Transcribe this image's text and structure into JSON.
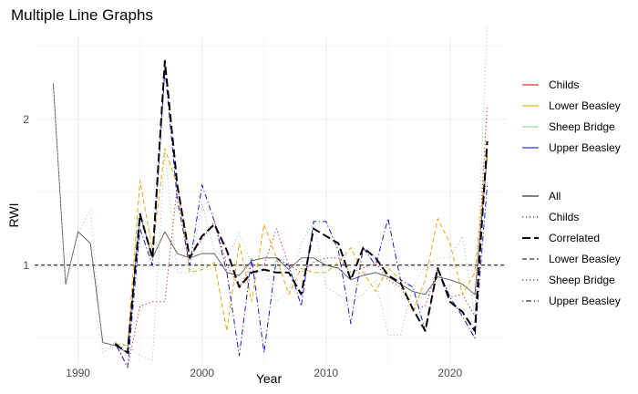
{
  "chart_data": {
    "type": "line",
    "title": "Multiple Line Graphs",
    "xlabel": "Year",
    "ylabel": "RWI",
    "xlim": [
      1986.5,
      2024.5
    ],
    "ylim": [
      0.33,
      2.58
    ],
    "xticks": [
      1990,
      2000,
      2010,
      2020
    ],
    "yticks": [
      1,
      2
    ],
    "grid": true,
    "reference_line": {
      "y": 1,
      "style": "dashed"
    },
    "legend_position": "right",
    "legend_color": {
      "title": "",
      "entries": [
        {
          "label": "Childs",
          "color": "#cc0000"
        },
        {
          "label": "Lower Beasley",
          "color": "#e69f00"
        },
        {
          "label": "Sheep Bridge",
          "color": "#8fd18f"
        },
        {
          "label": "Upper Beasley",
          "color": "#0000cc"
        }
      ]
    },
    "legend_linetype": {
      "title": "",
      "entries": [
        {
          "label": "All",
          "dash": "solid"
        },
        {
          "label": "Childs",
          "dash": "dotted"
        },
        {
          "label": "Correlated",
          "dash": "longdash"
        },
        {
          "label": "Lower Beasley",
          "dash": "dashed"
        },
        {
          "label": "Sheep Bridge",
          "dash": "dotted"
        },
        {
          "label": "Upper Beasley",
          "dash": "dotdash"
        }
      ]
    },
    "series": [
      {
        "name": "All",
        "color": "#555555",
        "dash": "solid",
        "width": 0.9,
        "x": [
          1988,
          1989,
          1990,
          1991,
          1992,
          1993,
          1994,
          1995,
          1996,
          1997,
          1998,
          1999,
          2000,
          2001,
          2002,
          2003,
          2004,
          2005,
          2006,
          2007,
          2008,
          2009,
          2010,
          2011,
          2012,
          2013,
          2014,
          2015,
          2016,
          2017,
          2018,
          2019,
          2020,
          2021,
          2022,
          2023
        ],
        "y": [
          2.25,
          0.87,
          1.23,
          1.15,
          0.47,
          0.45,
          0.4,
          1.35,
          1.05,
          1.23,
          1.08,
          1.05,
          1.08,
          1.08,
          0.95,
          0.93,
          1.03,
          1.05,
          1.05,
          0.97,
          1.05,
          1.05,
          1.0,
          0.98,
          0.9,
          0.93,
          0.95,
          0.92,
          0.87,
          0.82,
          0.8,
          0.92,
          0.9,
          0.87,
          0.8,
          1.75
        ]
      },
      {
        "name": "Childs",
        "color": "#cc0000",
        "dash": "dotted",
        "width": 0.9,
        "x": [
          1993,
          1994,
          1995,
          1996,
          1997,
          1998,
          1999,
          2000,
          2001,
          2002,
          2003,
          2004,
          2005,
          2006,
          2007,
          2008,
          2009,
          2010,
          2011,
          2012,
          2013,
          2014,
          2015,
          2016,
          2017,
          2018,
          2019,
          2020,
          2021,
          2022,
          2023
        ],
        "y": [
          0.46,
          0.3,
          0.72,
          0.75,
          0.75,
          1.55,
          1.05,
          1.18,
          1.3,
          1.0,
          0.85,
          1.0,
          1.0,
          1.25,
          1.0,
          0.95,
          1.02,
          1.05,
          1.05,
          0.95,
          0.98,
          1.02,
          0.9,
          0.85,
          0.7,
          0.72,
          0.98,
          0.78,
          0.8,
          0.65,
          2.1
        ]
      },
      {
        "name": "Lower Beasley",
        "color": "#e69f00",
        "dash": "dashed",
        "width": 0.9,
        "x": [
          1993,
          1994,
          1995,
          1996,
          1997,
          1998,
          1999,
          2000,
          2001,
          2002,
          2003,
          2004,
          2005,
          2006,
          2007,
          2008,
          2009,
          2010,
          2011,
          2012,
          2013,
          2014,
          2015,
          2016,
          2017,
          2018,
          2019,
          2020,
          2021,
          2022,
          2023
        ],
        "y": [
          0.46,
          0.45,
          1.58,
          1.1,
          1.8,
          1.55,
          0.95,
          0.97,
          1.02,
          0.55,
          1.15,
          0.75,
          1.28,
          1.05,
          0.8,
          0.98,
          0.95,
          0.95,
          1.02,
          1.12,
          0.95,
          0.82,
          0.98,
          0.9,
          0.68,
          0.9,
          1.32,
          1.15,
          0.8,
          0.95,
          1.8
        ]
      },
      {
        "name": "Sheep Bridge",
        "color": "#8fd18f",
        "dash": "dotted",
        "width": 0.9,
        "x": [
          1988,
          1989,
          1990,
          1991,
          1992,
          1993,
          1994,
          1995,
          1996,
          1997,
          1998,
          1999,
          2000,
          2001,
          2002,
          2003,
          2004,
          2005,
          2006,
          2007,
          2008,
          2009,
          2010,
          2011,
          2012,
          2013,
          2014,
          2015,
          2016,
          2017,
          2018,
          2019,
          2020,
          2021,
          2022,
          2023
        ],
        "y": [
          2.25,
          0.87,
          1.22,
          1.38,
          0.4,
          0.47,
          0.45,
          0.38,
          0.35,
          1.78,
          0.95,
          0.95,
          1.42,
          1.1,
          1.05,
          1.22,
          1.0,
          1.0,
          0.75,
          0.82,
          1.15,
          1.3,
          0.85,
          0.8,
          0.75,
          0.8,
          0.9,
          0.52,
          0.52,
          0.85,
          1.0,
          1.05,
          1.05,
          1.2,
          0.65,
          2.65
        ]
      },
      {
        "name": "Upper Beasley",
        "color": "#0000cc",
        "dash": "dotdash",
        "width": 0.9,
        "x": [
          1993,
          1994,
          1995,
          1996,
          1997,
          1998,
          1999,
          2000,
          2001,
          2002,
          2003,
          2004,
          2005,
          2006,
          2007,
          2008,
          2009,
          2010,
          2011,
          2012,
          2013,
          2014,
          2015,
          2016,
          2017,
          2018,
          2019,
          2020,
          2021,
          2022,
          2023
        ],
        "y": [
          0.47,
          0.3,
          1.25,
          1.0,
          2.35,
          1.45,
          1.0,
          1.55,
          1.3,
          0.95,
          0.38,
          1.05,
          0.4,
          1.05,
          1.0,
          0.72,
          1.3,
          1.3,
          1.1,
          0.6,
          1.12,
          1.0,
          1.32,
          0.9,
          0.85,
          0.55,
          0.98,
          0.78,
          0.65,
          0.5,
          1.55
        ]
      },
      {
        "name": "Correlated",
        "color": "#000000",
        "dash": "longdash",
        "width": 2.0,
        "x": [
          1993,
          1994,
          1995,
          1996,
          1997,
          1998,
          1999,
          2000,
          2001,
          2002,
          2003,
          2004,
          2005,
          2006,
          2007,
          2008,
          2009,
          2010,
          2011,
          2012,
          2013,
          2014,
          2015,
          2016,
          2017,
          2018,
          2019,
          2020,
          2021,
          2022,
          2023
        ],
        "y": [
          0.46,
          0.4,
          1.35,
          1.05,
          2.4,
          1.55,
          1.05,
          1.2,
          1.28,
          1.1,
          0.85,
          0.95,
          0.97,
          0.95,
          0.95,
          0.8,
          1.25,
          1.2,
          1.15,
          0.9,
          1.12,
          1.05,
          0.93,
          0.88,
          0.7,
          0.55,
          0.98,
          0.75,
          0.68,
          0.55,
          1.85
        ]
      }
    ]
  }
}
